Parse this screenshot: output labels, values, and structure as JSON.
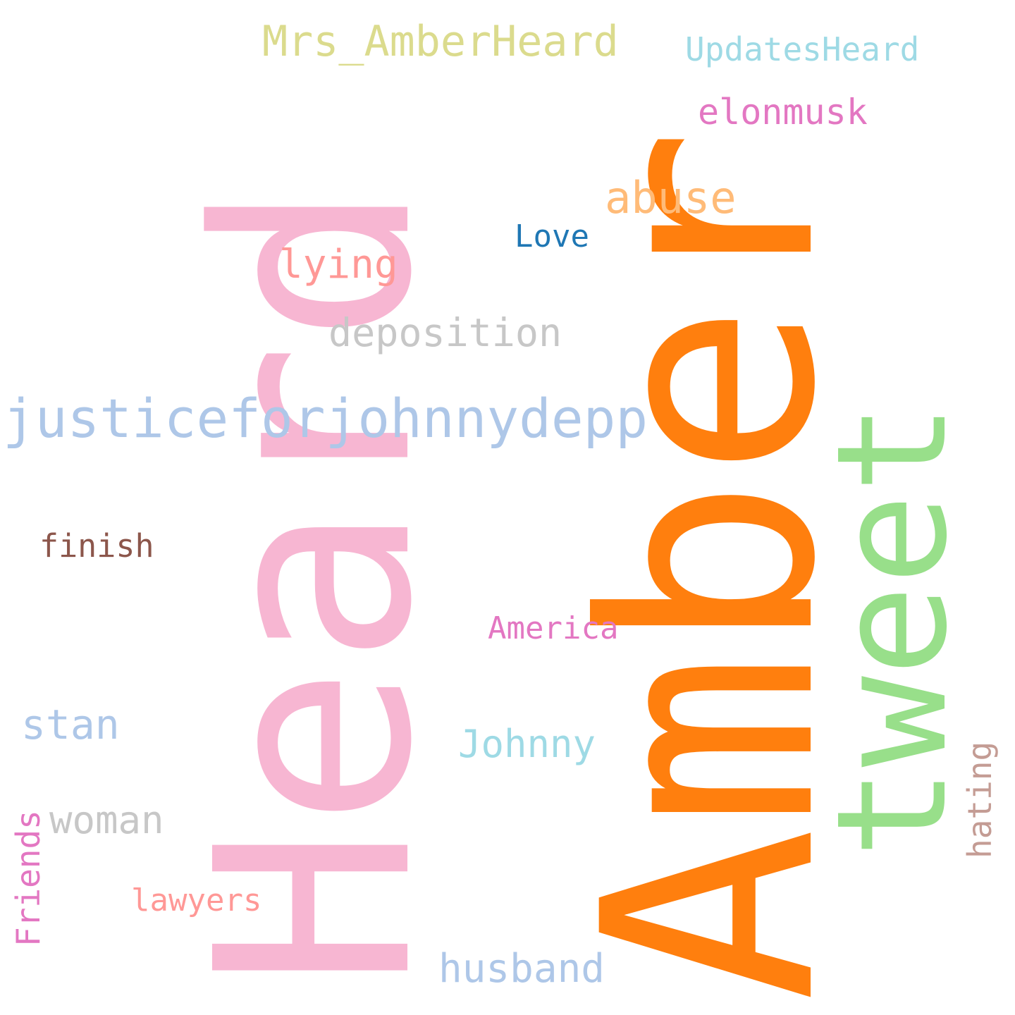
{
  "words": [
    {
      "text": "Heard",
      "color": "#f7b6d2",
      "orientation": "vertical"
    },
    {
      "text": "Amber",
      "color": "#ff7f0e",
      "orientation": "vertical"
    },
    {
      "text": "tweet",
      "color": "#98df8a",
      "orientation": "vertical"
    },
    {
      "text": "justiceforjohnnydepp",
      "color": "#aec7e8",
      "orientation": "horizontal"
    },
    {
      "text": "Mrs_AmberHeard",
      "color": "#dbdb8d",
      "orientation": "horizontal"
    },
    {
      "text": "UpdatesHeard",
      "color": "#9edae5",
      "orientation": "horizontal"
    },
    {
      "text": "elonmusk",
      "color": "#e377c2",
      "orientation": "horizontal"
    },
    {
      "text": "abuse",
      "color": "#ffbb78",
      "orientation": "horizontal"
    },
    {
      "text": "Love",
      "color": "#1f77b4",
      "orientation": "horizontal"
    },
    {
      "text": "lying",
      "color": "#ff9896",
      "orientation": "horizontal"
    },
    {
      "text": "deposition",
      "color": "#c7c7c7",
      "orientation": "horizontal"
    },
    {
      "text": "finish",
      "color": "#8c564b",
      "orientation": "horizontal"
    },
    {
      "text": "America",
      "color": "#e377c2",
      "orientation": "horizontal"
    },
    {
      "text": "stan",
      "color": "#aec7e8",
      "orientation": "horizontal"
    },
    {
      "text": "Johnny",
      "color": "#9edae5",
      "orientation": "horizontal"
    },
    {
      "text": "woman",
      "color": "#c7c7c7",
      "orientation": "horizontal"
    },
    {
      "text": "hating",
      "color": "#c49c94",
      "orientation": "vertical"
    },
    {
      "text": "Friends",
      "color": "#e377c2",
      "orientation": "vertical"
    },
    {
      "text": "lawyers",
      "color": "#ff9896",
      "orientation": "horizontal"
    },
    {
      "text": "husband",
      "color": "#aec7e8",
      "orientation": "horizontal"
    }
  ]
}
